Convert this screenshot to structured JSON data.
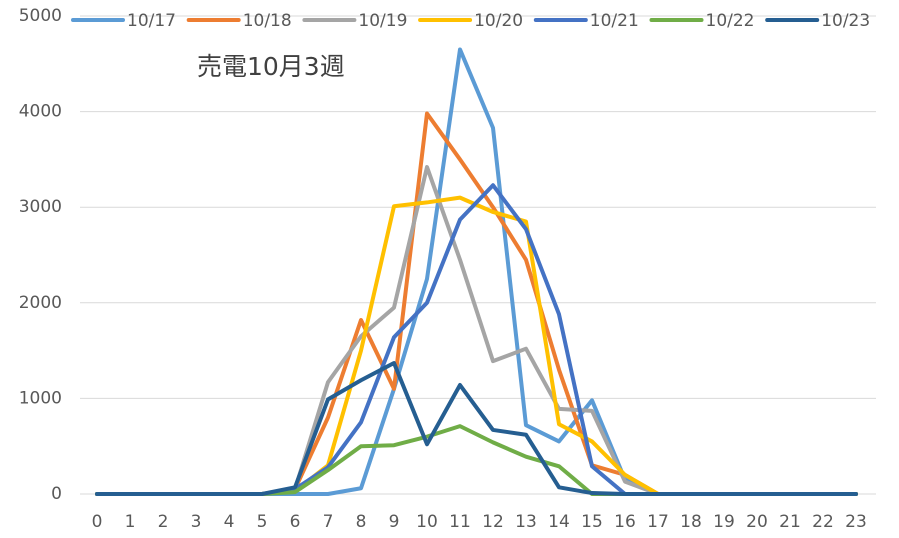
{
  "chart_data": {
    "type": "line",
    "title": "売電10月3週",
    "categories": [
      "0",
      "1",
      "2",
      "3",
      "4",
      "5",
      "6",
      "7",
      "8",
      "9",
      "10",
      "11",
      "12",
      "13",
      "14",
      "15",
      "16",
      "17",
      "18",
      "19",
      "20",
      "21",
      "22",
      "23"
    ],
    "ylim": [
      0,
      5000
    ],
    "yticks": [
      0,
      1000,
      2000,
      3000,
      4000,
      5000
    ],
    "grid": true,
    "legend": "top",
    "series": [
      {
        "name": "10/17",
        "color": "#5b9bd5",
        "values": [
          0,
          0,
          0,
          0,
          0,
          0,
          0,
          0,
          60,
          1100,
          2250,
          4650,
          3830,
          720,
          550,
          980,
          150,
          0,
          0,
          0,
          0,
          0,
          0,
          0
        ]
      },
      {
        "name": "10/18",
        "color": "#ed7d31",
        "values": [
          0,
          0,
          0,
          0,
          0,
          0,
          50,
          800,
          1820,
          1100,
          3980,
          3500,
          3000,
          2450,
          1300,
          300,
          200,
          0,
          0,
          0,
          0,
          0,
          0,
          0
        ]
      },
      {
        "name": "10/19",
        "color": "#a5a5a5",
        "values": [
          0,
          0,
          0,
          0,
          0,
          0,
          50,
          1170,
          1650,
          1950,
          3420,
          2450,
          1390,
          1520,
          890,
          870,
          130,
          0,
          0,
          0,
          0,
          0,
          0,
          0
        ]
      },
      {
        "name": "10/20",
        "color": "#ffc000",
        "values": [
          0,
          0,
          0,
          0,
          0,
          0,
          30,
          300,
          1500,
          3010,
          3050,
          3100,
          2950,
          2850,
          730,
          550,
          200,
          0,
          0,
          0,
          0,
          0,
          0,
          0
        ]
      },
      {
        "name": "10/21",
        "color": "#4472c4",
        "values": [
          0,
          0,
          0,
          0,
          0,
          0,
          50,
          280,
          750,
          1640,
          2000,
          2870,
          3230,
          2770,
          1880,
          290,
          0,
          0,
          0,
          0,
          0,
          0,
          0,
          0
        ]
      },
      {
        "name": "10/22",
        "color": "#70ad47",
        "values": [
          0,
          0,
          0,
          0,
          0,
          0,
          20,
          250,
          500,
          510,
          600,
          710,
          540,
          390,
          290,
          0,
          0,
          0,
          0,
          0,
          0,
          0,
          0,
          0
        ]
      },
      {
        "name": "10/23",
        "color": "#255e91",
        "values": [
          0,
          0,
          0,
          0,
          0,
          0,
          70,
          990,
          1190,
          1370,
          520,
          1140,
          670,
          620,
          70,
          10,
          0,
          0,
          0,
          0,
          0,
          0,
          0,
          0
        ]
      }
    ]
  }
}
